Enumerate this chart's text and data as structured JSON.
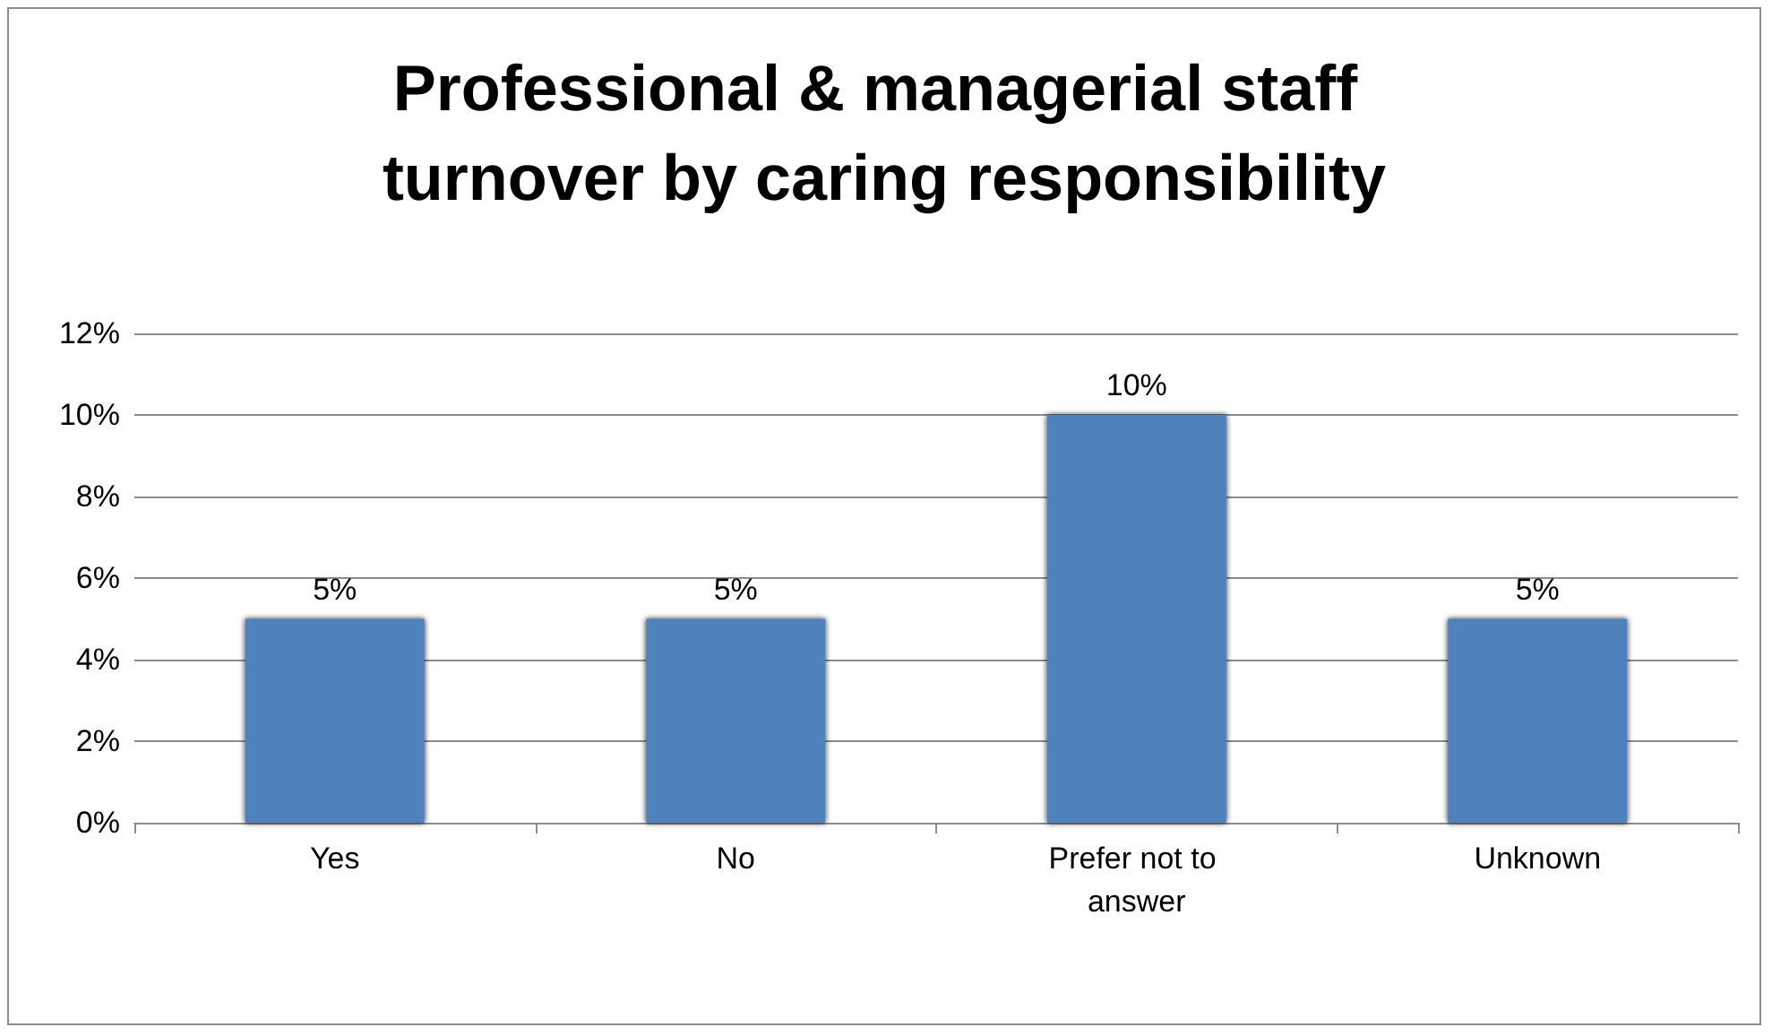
{
  "chart_data": {
    "type": "bar",
    "title": "Professional & managerial staff turnover by caring responsibility",
    "categories": [
      "Yes",
      "No",
      "Prefer not to answer",
      "Unknown"
    ],
    "values": [
      5,
      5,
      10,
      5
    ],
    "color": "#4f81bd",
    "value_labels": [
      "5%",
      "5%",
      "10%",
      "5%"
    ],
    "ylim": [
      0,
      12
    ],
    "yticks": [
      {
        "value": 0,
        "label": "0%"
      },
      {
        "value": 2,
        "label": "2%"
      },
      {
        "value": 4,
        "label": "4%"
      },
      {
        "value": 6,
        "label": "6%"
      },
      {
        "value": 8,
        "label": "8%"
      },
      {
        "value": 10,
        "label": "10%"
      },
      {
        "value": 12,
        "label": "12%"
      }
    ],
    "grid": "y"
  }
}
